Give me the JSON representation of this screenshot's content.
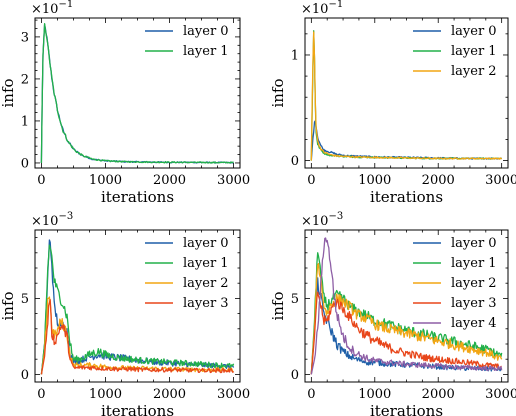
{
  "colors": {
    "layer 0": "#1f5fa8",
    "layer 1": "#22b04a",
    "layer 2": "#f2a614",
    "layer 3": "#e8461a",
    "layer 4": "#8e5fa6"
  },
  "chart_data": [
    {
      "type": "line",
      "scale_label": "×10",
      "scale_exp": "−1",
      "xlabel": "iterations",
      "ylabel": "info",
      "xlim": [
        -100,
        3100
      ],
      "ylim": [
        -0.12,
        3.45
      ],
      "xticks": [
        0,
        1000,
        2000,
        3000
      ],
      "yticks": [
        0,
        1,
        2,
        3
      ],
      "legend": "upper-right",
      "series": [
        {
          "name": "layer 0",
          "x": [
            0,
            20,
            50,
            80,
            120,
            160,
            200,
            260,
            330,
            420,
            520,
            650,
            800,
            1000,
            1300,
            1700,
            2200,
            2700,
            3000
          ],
          "y": [
            0,
            2.4,
            3.28,
            3.05,
            2.55,
            2.05,
            1.65,
            1.2,
            0.8,
            0.5,
            0.3,
            0.17,
            0.09,
            0.05,
            0.03,
            0.02,
            0.015,
            0.01,
            0.01
          ]
        },
        {
          "name": "layer 1",
          "x": [
            0,
            20,
            50,
            80,
            120,
            160,
            200,
            260,
            330,
            420,
            520,
            650,
            800,
            1000,
            1300,
            1700,
            2200,
            2700,
            3000
          ],
          "y": [
            0,
            2.4,
            3.28,
            3.05,
            2.55,
            2.05,
            1.65,
            1.2,
            0.8,
            0.5,
            0.3,
            0.17,
            0.09,
            0.05,
            0.03,
            0.02,
            0.015,
            0.01,
            0.01
          ]
        }
      ]
    },
    {
      "type": "line",
      "scale_label": "×10",
      "scale_exp": "−1",
      "xlabel": "iterations",
      "ylabel": "info",
      "xlim": [
        -100,
        3100
      ],
      "ylim": [
        -0.07,
        1.35
      ],
      "xticks": [
        0,
        1000,
        2000,
        3000
      ],
      "yticks": [
        0,
        1
      ],
      "legend": "upper-right",
      "series": [
        {
          "name": "layer 0",
          "x": [
            0,
            30,
            60,
            100,
            150,
            200,
            300,
            400,
            500,
            600,
            800,
            1000,
            1500,
            2000,
            2500,
            3000
          ],
          "y": [
            0,
            0.25,
            0.4,
            0.22,
            0.14,
            0.1,
            0.08,
            0.06,
            0.05,
            0.045,
            0.04,
            0.035,
            0.03,
            0.025,
            0.02,
            0.02
          ]
        },
        {
          "name": "layer 1",
          "x": [
            0,
            20,
            40,
            70,
            100,
            150,
            200,
            300,
            400,
            500,
            700,
            1000,
            1500,
            2000,
            2500,
            3000
          ],
          "y": [
            0,
            0.7,
            1.3,
            0.3,
            0.15,
            0.1,
            0.07,
            0.05,
            0.045,
            0.04,
            0.035,
            0.03,
            0.025,
            0.02,
            0.02,
            0.02
          ]
        },
        {
          "name": "layer 2",
          "x": [
            0,
            20,
            40,
            70,
            100,
            150,
            200,
            300,
            400,
            500,
            700,
            1000,
            1500,
            2000,
            2500,
            3000
          ],
          "y": [
            0,
            0.8,
            1.28,
            0.35,
            0.18,
            0.11,
            0.08,
            0.055,
            0.045,
            0.04,
            0.035,
            0.03,
            0.025,
            0.02,
            0.02,
            0.02
          ]
        }
      ]
    },
    {
      "type": "line",
      "scale_label": "×10",
      "scale_exp": "−3",
      "xlabel": "iterations",
      "ylabel": "info",
      "xlim": [
        -100,
        3100
      ],
      "ylim": [
        -0.5,
        9.5
      ],
      "xticks": [
        0,
        1000,
        2000,
        3000
      ],
      "yticks": [
        0,
        5
      ],
      "legend": "upper-right",
      "series": [
        {
          "name": "layer 0",
          "x": [
            0,
            50,
            100,
            130,
            160,
            200,
            250,
            300,
            350,
            400,
            450,
            500,
            600,
            700,
            800,
            900,
            1000,
            1200,
            1400,
            1600,
            1800,
            2000,
            2200,
            2400,
            2600,
            2800,
            3000
          ],
          "y": [
            0,
            2,
            6.5,
            9.1,
            7.5,
            4.5,
            3.5,
            3,
            3.3,
            2.8,
            1.5,
            0.8,
            0.9,
            1.1,
            1.2,
            1.3,
            1.2,
            1.1,
            1.0,
            0.9,
            0.8,
            0.75,
            0.7,
            0.65,
            0.6,
            0.55,
            0.5
          ]
        },
        {
          "name": "layer 1",
          "x": [
            0,
            50,
            100,
            130,
            160,
            200,
            250,
            300,
            350,
            400,
            450,
            500,
            600,
            700,
            800,
            900,
            1000,
            1200,
            1400,
            1600,
            1800,
            2000,
            2200,
            2400,
            2600,
            2800,
            3000
          ],
          "y": [
            0,
            2,
            7,
            8.7,
            7.8,
            6.2,
            5.5,
            5,
            4.5,
            3.8,
            2,
            1.0,
            1.0,
            1.2,
            1.4,
            1.5,
            1.3,
            1.1,
            1.0,
            0.9,
            0.85,
            0.8,
            0.75,
            0.7,
            0.65,
            0.6,
            0.55
          ]
        },
        {
          "name": "layer 2",
          "x": [
            0,
            50,
            100,
            130,
            160,
            200,
            250,
            300,
            350,
            400,
            450,
            500,
            600,
            700,
            800,
            900,
            1000,
            1200,
            1400,
            1600,
            1800,
            2000,
            2200,
            2400,
            2600,
            2800,
            3000
          ],
          "y": [
            0,
            1.5,
            5,
            5.2,
            3.2,
            2.5,
            2.8,
            3.5,
            3.2,
            2.7,
            1.2,
            0.6,
            0.6,
            0.6,
            0.6,
            0.55,
            0.5,
            0.45,
            0.4,
            0.4,
            0.38,
            0.35,
            0.33,
            0.32,
            0.3,
            0.3,
            0.3
          ]
        },
        {
          "name": "layer 3",
          "x": [
            0,
            50,
            100,
            130,
            160,
            200,
            250,
            300,
            350,
            400,
            450,
            500,
            600,
            700,
            800,
            900,
            1000,
            1200,
            1400,
            1600,
            1800,
            2000,
            2200,
            2400,
            2600,
            2800,
            3000
          ],
          "y": [
            0,
            1.2,
            3.5,
            5.3,
            2.8,
            2.2,
            2.5,
            3.2,
            3.0,
            2.5,
            1.0,
            0.4,
            0.45,
            0.45,
            0.45,
            0.4,
            0.4,
            0.35,
            0.35,
            0.3,
            0.3,
            0.3,
            0.28,
            0.27,
            0.26,
            0.25,
            0.25
          ]
        }
      ]
    },
    {
      "type": "line",
      "scale_label": "×10",
      "scale_exp": "−3",
      "xlabel": "iterations",
      "ylabel": "info",
      "xlim": [
        -100,
        3100
      ],
      "ylim": [
        -0.5,
        9.5
      ],
      "xticks": [
        0,
        1000,
        2000,
        3000
      ],
      "yticks": [
        0,
        5
      ],
      "legend": "upper-right",
      "series": [
        {
          "name": "layer 0",
          "x": [
            0,
            50,
            100,
            150,
            200,
            250,
            300,
            400,
            500,
            600,
            700,
            800,
            900,
            1000,
            1200,
            1400,
            1600,
            1800,
            2000,
            2200,
            2400,
            2600,
            2800,
            3000
          ],
          "y": [
            0,
            3,
            6,
            5,
            4,
            3.5,
            3,
            2,
            1.5,
            1.2,
            1.0,
            0.9,
            0.8,
            0.8,
            0.7,
            0.65,
            0.6,
            0.55,
            0.5,
            0.45,
            0.4,
            0.4,
            0.35,
            0.35
          ]
        },
        {
          "name": "layer 1",
          "x": [
            0,
            50,
            100,
            150,
            200,
            250,
            300,
            400,
            500,
            600,
            700,
            800,
            900,
            1000,
            1200,
            1400,
            1600,
            1800,
            2000,
            2200,
            2400,
            2600,
            2800,
            3000
          ],
          "y": [
            0,
            3.5,
            8.3,
            6.5,
            5,
            4.5,
            4.8,
            5.2,
            5.0,
            4.5,
            4.2,
            4.0,
            3.8,
            3.5,
            3.3,
            3.0,
            2.8,
            2.6,
            2.4,
            2.2,
            2.0,
            1.8,
            1.6,
            1.2
          ]
        },
        {
          "name": "layer 2",
          "x": [
            0,
            50,
            100,
            150,
            200,
            250,
            300,
            400,
            500,
            600,
            700,
            800,
            900,
            1000,
            1200,
            1400,
            1600,
            1800,
            2000,
            2200,
            2400,
            2600,
            2800,
            3000
          ],
          "y": [
            0,
            3,
            7.5,
            6.2,
            4.5,
            4.0,
            4.5,
            5.0,
            4.8,
            4.5,
            4.0,
            3.8,
            3.6,
            3.3,
            3.0,
            2.8,
            2.6,
            2.4,
            2.2,
            2.0,
            1.8,
            1.6,
            1.4,
            1.0
          ]
        },
        {
          "name": "layer 3",
          "x": [
            0,
            50,
            100,
            150,
            200,
            250,
            300,
            400,
            500,
            600,
            700,
            800,
            900,
            1000,
            1200,
            1400,
            1600,
            1800,
            2000,
            2200,
            2400,
            2600,
            2800,
            3000
          ],
          "y": [
            0,
            2.5,
            5.5,
            4.5,
            3.5,
            3.5,
            4.2,
            4.8,
            4.3,
            3.8,
            3.2,
            2.8,
            2.5,
            2.2,
            1.8,
            1.5,
            1.3,
            1.1,
            1.0,
            0.9,
            0.8,
            0.7,
            0.6,
            0.5
          ]
        },
        {
          "name": "layer 4",
          "x": [
            0,
            50,
            100,
            150,
            200,
            230,
            260,
            300,
            350,
            400,
            500,
            600,
            700,
            800,
            900,
            1000,
            1200,
            1400,
            1600,
            1800,
            2000,
            2200,
            2400,
            2600,
            2800,
            3000
          ],
          "y": [
            0,
            1,
            3,
            6,
            8.5,
            9.2,
            8.5,
            7.5,
            5.5,
            4,
            2.5,
            1.8,
            1.4,
            1.2,
            1.0,
            0.9,
            0.8,
            0.7,
            0.65,
            0.6,
            0.55,
            0.5,
            0.45,
            0.42,
            0.4,
            0.38
          ]
        }
      ]
    }
  ]
}
